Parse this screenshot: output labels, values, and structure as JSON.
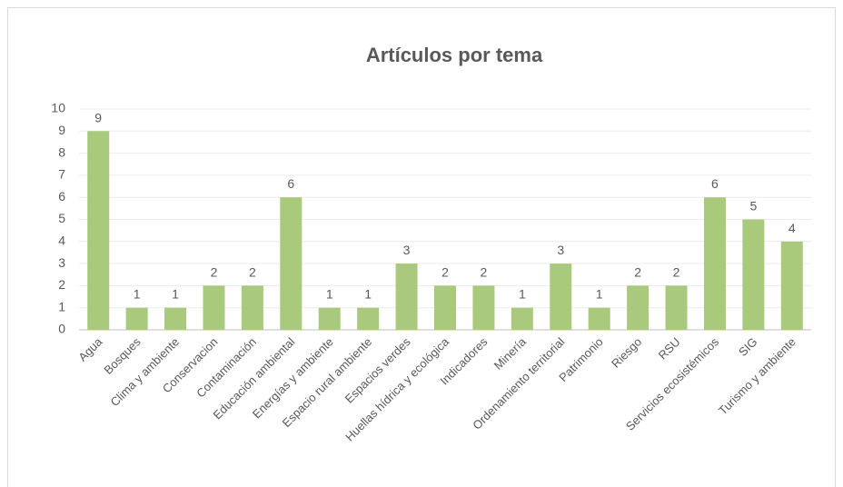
{
  "chart_data": {
    "type": "bar",
    "title": "Artículos por tema",
    "categories": [
      "Agua",
      "Bosques",
      "Clima y ambiente",
      "Conservacion",
      "Contaminación",
      "Educación ambiental",
      "Energías y ambiente",
      "Espacio rural ambiente",
      "Espacios verdes",
      "Huellas hídrica y ecológica",
      "Indicadores",
      "Minería",
      "Ordenamiento territorial",
      "Patrimonio",
      "Riesgo",
      "RSU",
      "Servicios ecosistémicos",
      "SIG",
      "Turismo y ambiente"
    ],
    "values": [
      9,
      1,
      1,
      2,
      2,
      6,
      1,
      1,
      3,
      2,
      2,
      1,
      3,
      1,
      2,
      2,
      6,
      5,
      4
    ],
    "color": "#a9c97c",
    "ylim": [
      0,
      10
    ],
    "yticks": [
      0,
      1,
      2,
      3,
      4,
      5,
      6,
      7,
      8,
      9,
      10
    ],
    "grid": true
  }
}
